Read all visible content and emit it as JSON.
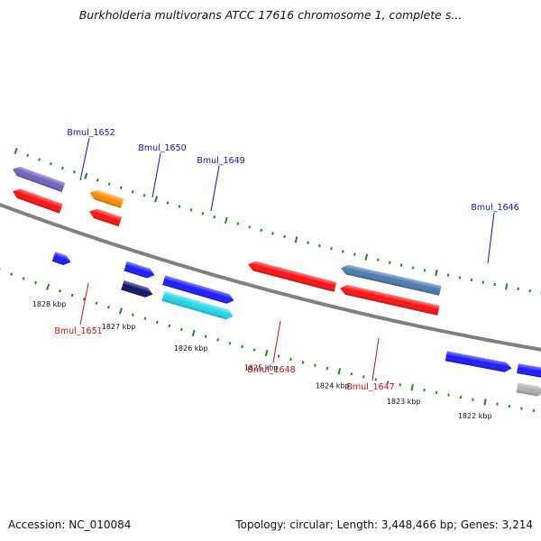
{
  "title": "Burkholderia multivorans ATCC 17616 chromosome 1, complete s...",
  "footer": {
    "accession": "Accession: NC_010084",
    "summary": "Topology: circular; Length: 3,448,466 bp; Genes: 3,214"
  },
  "colors": {
    "backbone": "#808080",
    "tick": "#1a8a1a",
    "label_forward": "#1010c0",
    "label_reverse": "#d01010"
  },
  "scale_ticks": [
    {
      "label": "1828 kbp"
    },
    {
      "label": "1827 kbp"
    },
    {
      "label": "1826 kbp"
    },
    {
      "label": "1825 kbp"
    },
    {
      "label": "1824 kbp"
    },
    {
      "label": "1823 kbp"
    },
    {
      "label": "1822 kbp"
    }
  ],
  "gene_labels": [
    {
      "text": "Bmul_1652",
      "strand": "forward"
    },
    {
      "text": "Bmul_1650",
      "strand": "forward"
    },
    {
      "text": "Bmul_1649",
      "strand": "forward"
    },
    {
      "text": "Bmul_1646",
      "strand": "forward"
    },
    {
      "text": "Bmul_1651",
      "strand": "reverse"
    },
    {
      "text": "Bmul_1648",
      "strand": "reverse"
    },
    {
      "text": "Bmul_1647",
      "strand": "reverse"
    }
  ],
  "genes": [
    {
      "strand": "forward",
      "color": "#1a1aff",
      "label": "Bmul_1652"
    },
    {
      "strand": "forward",
      "color": "#101070",
      "label": "Bmul_1650"
    },
    {
      "strand": "forward",
      "color": "#1a1aff"
    },
    {
      "strand": "forward",
      "color": "#20d8e8",
      "label": "Bmul_1649"
    },
    {
      "strand": "forward",
      "color": "#1a1aff"
    },
    {
      "strand": "forward",
      "color": "#1a1aff",
      "label": "Bmul_1646"
    },
    {
      "strand": "forward",
      "color": "#1a1aff"
    },
    {
      "strand": "forward",
      "color": "#b0b0b0"
    },
    {
      "strand": "reverse",
      "color": "#ff1010"
    },
    {
      "strand": "reverse",
      "color": "#ff1010"
    },
    {
      "strand": "reverse",
      "color": "#7060c0"
    },
    {
      "strand": "reverse",
      "color": "#ff8c00",
      "label": "Bmul_1651"
    },
    {
      "strand": "reverse",
      "color": "#ff1010",
      "label": "Bmul_1648"
    },
    {
      "strand": "reverse",
      "color": "#ff1010",
      "label": "Bmul_1647"
    },
    {
      "strand": "reverse",
      "color": "#4a7ab0"
    }
  ]
}
